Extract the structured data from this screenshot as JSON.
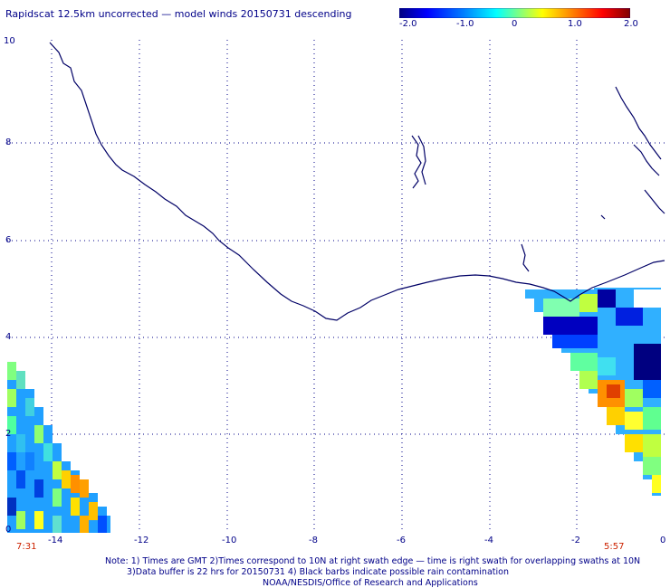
{
  "title": "Rapidscat 12.5km uncorrected — model winds 20150731 descending",
  "colorbar": {
    "min": -2.0,
    "max": 2.0,
    "tick_labels": [
      "-2.0",
      "-1.0",
      "0",
      "1.0",
      "2.0"
    ],
    "colors": [
      "#000080",
      "#0000ff",
      "#0080ff",
      "#00ffff",
      "#80ff80",
      "#ffff00",
      "#ff8000",
      "#ff0000",
      "#800000"
    ]
  },
  "axes": {
    "x_ticks": [
      "-14",
      "-12",
      "-10",
      "-8",
      "-6",
      "-4",
      "-2",
      "0"
    ],
    "y_ticks": [
      "0",
      "2",
      "4",
      "6",
      "8",
      "10"
    ],
    "lon_range": [
      -15,
      0
    ],
    "lat_range": [
      0,
      10
    ],
    "grid": true
  },
  "swath_times": {
    "left": "7:31",
    "right": "5:57"
  },
  "notes": {
    "line1": "Note: 1) Times are GMT 2)Times correspond to 10N at right swath edge — time is right swath for overlapping swaths at 10N",
    "line2": "3)Data buffer is 22 hrs for 20150731 4) Black barbs indicate possible rain contamination",
    "line3": "NOAA/NESDIS/Office of Research and Applications"
  }
}
